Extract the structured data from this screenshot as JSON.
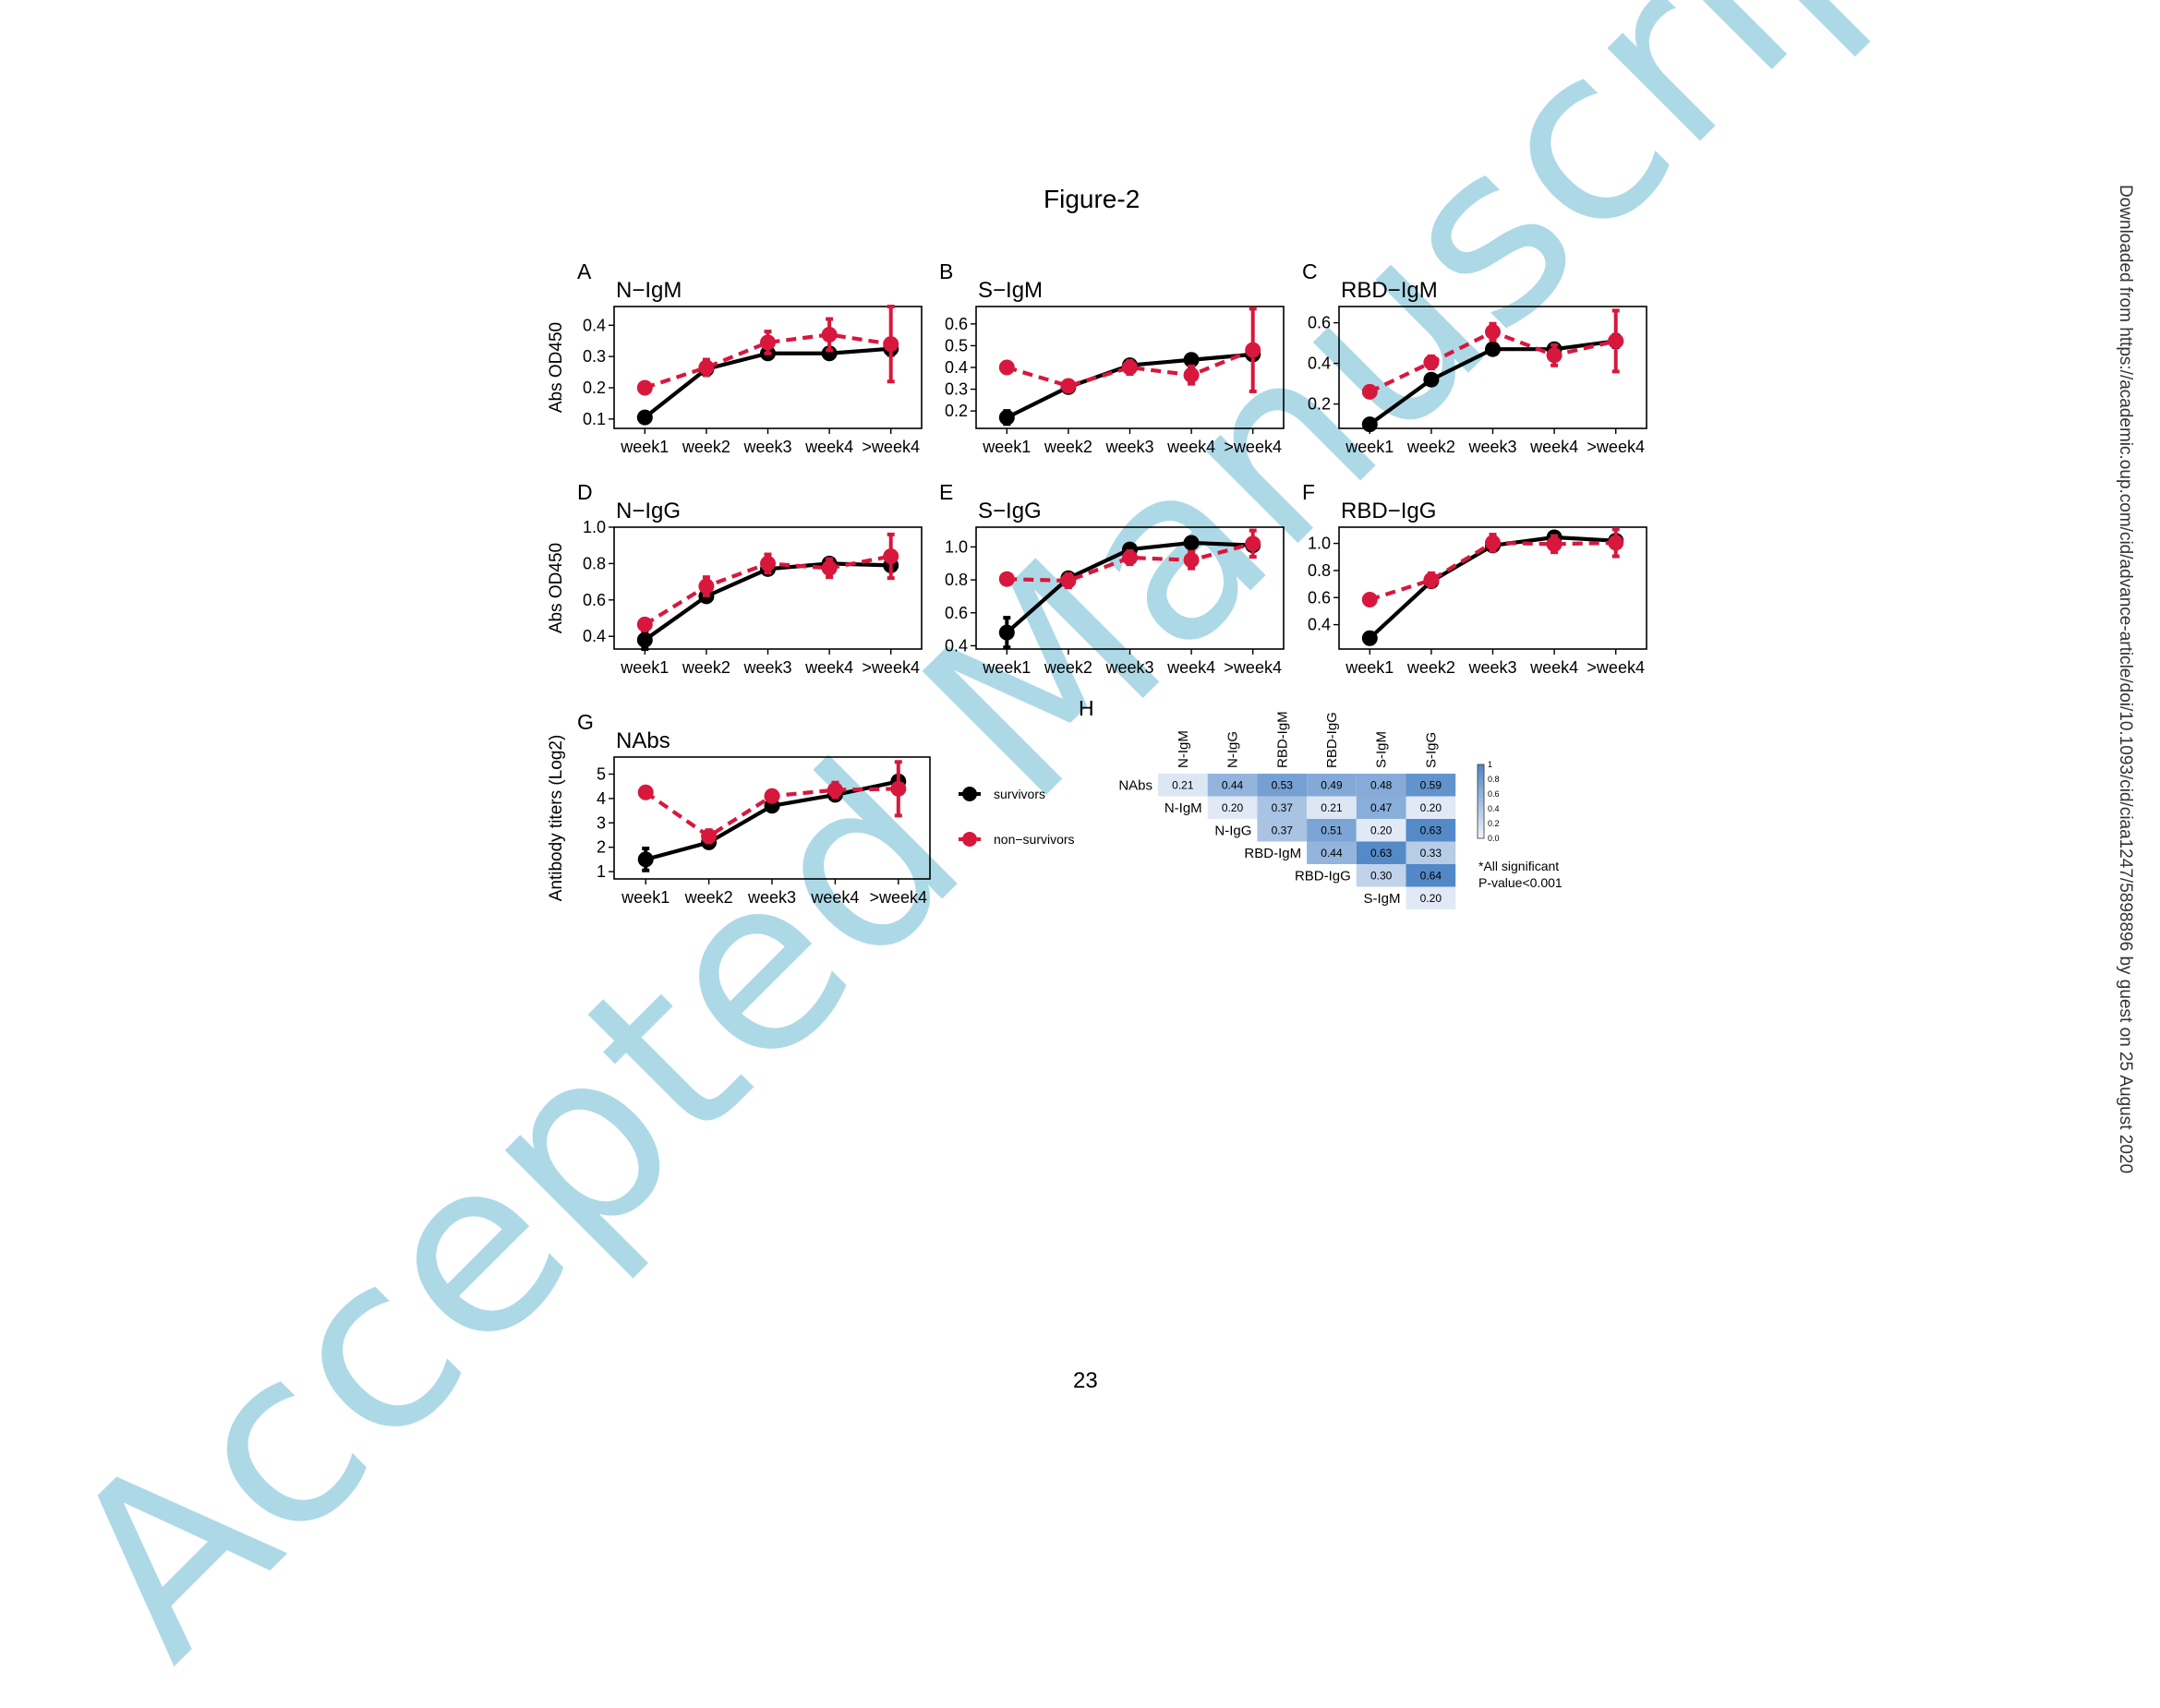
{
  "watermark": "Accepted Manuscript",
  "figure_title": "Figure-2",
  "page_number": "23",
  "side_note": "Downloaded from https://academic.oup.com/cid/advance-article/doi/10.1093/cid/ciaa1247/5898896 by guest on 25 August 2020",
  "colors": {
    "survivors": "#000000",
    "non_survivors": "#d8173d",
    "heat_low": "#f0f4fa",
    "heat_high": "#4f86c6"
  },
  "chart_data": [
    {
      "panel": "A",
      "type": "line",
      "title": "N−IgM",
      "xlabel": "",
      "ylabel": "Abs OD450",
      "categories": [
        "week1",
        "week2",
        "week3",
        "week4",
        ">week4"
      ],
      "ylim": [
        0.07,
        0.46
      ],
      "yticks": [
        0.1,
        0.2,
        0.3,
        0.4
      ],
      "ytick_labels": [
        "0.1",
        "0.2",
        "0.3",
        "0.4"
      ],
      "series": [
        {
          "name": "survivors",
          "style": "solid",
          "values": [
            0.105,
            0.26,
            0.31,
            0.31,
            0.325
          ],
          "errors": [
            0.01,
            0.01,
            0.01,
            0.01,
            0.02
          ]
        },
        {
          "name": "non−survivors",
          "style": "dashed",
          "values": [
            0.2,
            0.265,
            0.345,
            0.37,
            0.34
          ],
          "errors": [
            0.01,
            0.025,
            0.035,
            0.05,
            0.12
          ]
        }
      ]
    },
    {
      "panel": "B",
      "type": "line",
      "title": "S−IgM",
      "xlabel": "",
      "ylabel": "",
      "categories": [
        "week1",
        "week2",
        "week3",
        "week4",
        ">week4"
      ],
      "ylim": [
        0.12,
        0.68
      ],
      "yticks": [
        0.2,
        0.3,
        0.4,
        0.5,
        0.6
      ],
      "ytick_labels": [
        "0.2",
        "0.3",
        "0.4",
        "0.5",
        "0.6"
      ],
      "series": [
        {
          "name": "survivors",
          "style": "solid",
          "values": [
            0.17,
            0.31,
            0.41,
            0.435,
            0.46
          ],
          "errors": [
            0.03,
            0.01,
            0.01,
            0.01,
            0.02
          ]
        },
        {
          "name": "non−survivors",
          "style": "dashed",
          "values": [
            0.4,
            0.315,
            0.4,
            0.365,
            0.48
          ],
          "errors": [
            0.01,
            0.02,
            0.03,
            0.04,
            0.19
          ]
        }
      ]
    },
    {
      "panel": "C",
      "type": "line",
      "title": "RBD−IgM",
      "xlabel": "",
      "ylabel": "",
      "categories": [
        "week1",
        "week2",
        "week3",
        "week4",
        ">week4"
      ],
      "ylim": [
        0.08,
        0.68
      ],
      "yticks": [
        0.2,
        0.4,
        0.6
      ],
      "ytick_labels": [
        "0.2",
        "0.4",
        "0.6"
      ],
      "series": [
        {
          "name": "survivors",
          "style": "solid",
          "values": [
            0.1,
            0.32,
            0.47,
            0.47,
            0.51
          ],
          "errors": [
            0.01,
            0.01,
            0.02,
            0.02,
            0.03
          ]
        },
        {
          "name": "non−survivors",
          "style": "dashed",
          "values": [
            0.26,
            0.405,
            0.555,
            0.44,
            0.51
          ],
          "errors": [
            0.02,
            0.03,
            0.04,
            0.05,
            0.15
          ]
        }
      ]
    },
    {
      "panel": "D",
      "type": "line",
      "title": "N−IgG",
      "xlabel": "",
      "ylabel": "Abs OD450",
      "categories": [
        "week1",
        "week2",
        "week3",
        "week4",
        ">week4"
      ],
      "ylim": [
        0.33,
        1.0
      ],
      "yticks": [
        0.4,
        0.6,
        0.8,
        1.0
      ],
      "ytick_labels": [
        "0.4",
        "0.6",
        "0.8",
        "1.0"
      ],
      "series": [
        {
          "name": "survivors",
          "style": "solid",
          "values": [
            0.38,
            0.62,
            0.77,
            0.8,
            0.79
          ],
          "errors": [
            0.05,
            0.02,
            0.02,
            0.02,
            0.02
          ]
        },
        {
          "name": "non−survivors",
          "style": "dashed",
          "values": [
            0.465,
            0.675,
            0.8,
            0.775,
            0.84
          ],
          "errors": [
            0.02,
            0.05,
            0.05,
            0.05,
            0.12
          ]
        }
      ]
    },
    {
      "panel": "E",
      "type": "line",
      "title": "S−IgG",
      "xlabel": "",
      "ylabel": "",
      "categories": [
        "week1",
        "week2",
        "week3",
        "week4",
        ">week4"
      ],
      "ylim": [
        0.38,
        1.12
      ],
      "yticks": [
        0.4,
        0.6,
        0.8,
        1.0
      ],
      "ytick_labels": [
        "0.4",
        "0.6",
        "0.8",
        "1.0"
      ],
      "series": [
        {
          "name": "survivors",
          "style": "solid",
          "values": [
            0.48,
            0.81,
            0.985,
            1.025,
            1.01
          ],
          "errors": [
            0.09,
            0.03,
            0.02,
            0.02,
            0.02
          ]
        },
        {
          "name": "non−survivors",
          "style": "dashed",
          "values": [
            0.805,
            0.795,
            0.935,
            0.92,
            1.02
          ],
          "errors": [
            0.02,
            0.04,
            0.04,
            0.05,
            0.08
          ]
        }
      ]
    },
    {
      "panel": "F",
      "type": "line",
      "title": "RBD−IgG",
      "xlabel": "",
      "ylabel": "",
      "categories": [
        "week1",
        "week2",
        "week3",
        "week4",
        ">week4"
      ],
      "ylim": [
        0.22,
        1.12
      ],
      "yticks": [
        0.4,
        0.6,
        0.8,
        1.0
      ],
      "ytick_labels": [
        "0.4",
        "0.6",
        "0.8",
        "1.0"
      ],
      "series": [
        {
          "name": "survivors",
          "style": "solid",
          "values": [
            0.3,
            0.72,
            0.985,
            1.045,
            1.02
          ],
          "errors": [
            0.04,
            0.02,
            0.02,
            0.02,
            0.02
          ]
        },
        {
          "name": "non−survivors",
          "style": "dashed",
          "values": [
            0.585,
            0.73,
            1.005,
            0.995,
            1.005
          ],
          "errors": [
            0.02,
            0.05,
            0.06,
            0.06,
            0.1
          ]
        }
      ]
    },
    {
      "panel": "G",
      "type": "line",
      "title": "NAbs",
      "xlabel": "",
      "ylabel": "Antibody titers (Log2)",
      "categories": [
        "week1",
        "week2",
        "week3",
        "week4",
        ">week4"
      ],
      "ylim": [
        0.7,
        5.7
      ],
      "yticks": [
        1,
        2,
        3,
        4,
        5
      ],
      "ytick_labels": [
        "1",
        "2",
        "3",
        "4",
        "5"
      ],
      "series": [
        {
          "name": "survivors",
          "style": "solid",
          "values": [
            1.5,
            2.2,
            3.7,
            4.15,
            4.7
          ],
          "errors": [
            0.45,
            0.1,
            0.1,
            0.1,
            0.1
          ]
        },
        {
          "name": "non−survivors",
          "style": "dashed",
          "values": [
            4.25,
            2.45,
            4.1,
            4.35,
            4.4
          ],
          "errors": [
            0.1,
            0.25,
            0.2,
            0.3,
            1.1
          ]
        }
      ]
    },
    {
      "panel": "H",
      "type": "heatmap",
      "columns": [
        "N-IgM",
        "N-IgG",
        "RBD-IgM",
        "RBD-IgG",
        "S-IgM",
        "S-IgG"
      ],
      "rows": [
        "NAbs",
        "N-IgM",
        "N-IgG",
        "RBD-IgM",
        "RBD-IgG",
        "S-IgM"
      ],
      "values": [
        [
          0.21,
          0.44,
          0.53,
          0.49,
          0.48,
          0.59
        ],
        [
          null,
          0.2,
          0.37,
          0.21,
          0.47,
          0.2
        ],
        [
          null,
          null,
          0.37,
          0.51,
          0.2,
          0.63
        ],
        [
          null,
          null,
          null,
          0.44,
          0.63,
          0.33
        ],
        [
          null,
          null,
          null,
          null,
          0.3,
          0.64
        ],
        [
          null,
          null,
          null,
          null,
          null,
          0.2
        ]
      ],
      "value_labels": [
        [
          "0.21",
          "0.44",
          "0.53",
          "0.49",
          "0.48",
          "0.59"
        ],
        [
          "",
          "0.20",
          "0.37",
          "0.21",
          "0.47",
          "0.20"
        ],
        [
          "",
          "",
          "0.37",
          "0.51",
          "0.20",
          "0.63"
        ],
        [
          "",
          "",
          "",
          "0.44",
          "0.63",
          "0.33"
        ],
        [
          "",
          "",
          "",
          "",
          "0.30",
          "0.64"
        ],
        [
          "",
          "",
          "",
          "",
          "",
          "0.20"
        ]
      ],
      "colorbar": {
        "range": [
          0,
          1
        ],
        "ticks": [
          1,
          0.8,
          0.6,
          0.4,
          0.2,
          0.0
        ],
        "tick_labels": [
          "1",
          "0.8",
          "0.6",
          "0.4",
          "0.2",
          "0.0"
        ]
      },
      "note_line1": "*All significant",
      "note_line2": "P-value<0.001"
    }
  ],
  "legend": {
    "survivors": "survivors",
    "non_survivors": "non−survivors"
  }
}
